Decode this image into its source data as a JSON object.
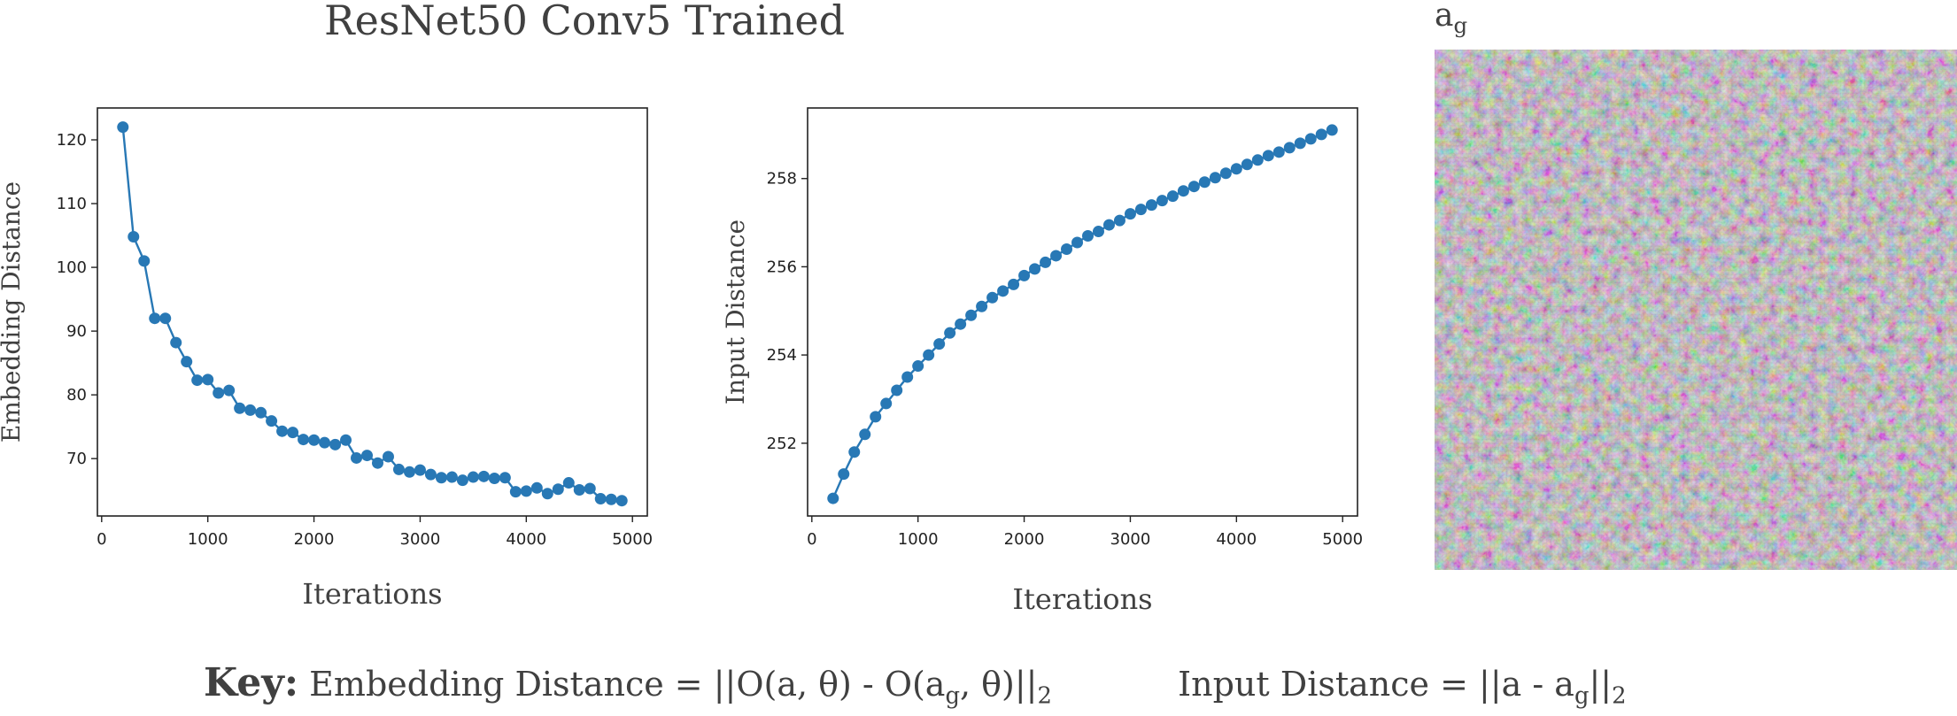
{
  "figure": {
    "title": "ResNet50 Conv5 Trained",
    "image_title": {
      "base": "a",
      "sub": "g"
    },
    "key": {
      "label": "Key:",
      "embedding_text": "Embedding Distance = ||O(a, θ) - O(a",
      "embedding_sub": "g",
      "embedding_tail": ", θ)||",
      "embedding_end_sub": "2",
      "input_text": "Input Distance = ||a - a",
      "input_sub": "g",
      "input_tail": "||",
      "input_end_sub": "2"
    },
    "colors": {
      "series": "#2878b5",
      "axis": "#222222",
      "text": "#404040"
    }
  },
  "chart_data": [
    {
      "type": "line",
      "xlabel": "Iterations",
      "ylabel": "Embedding Distance",
      "xlim": [
        -40,
        5140
      ],
      "ylim": [
        61,
        125
      ],
      "xticks": [
        0,
        1000,
        2000,
        3000,
        4000,
        5000
      ],
      "yticks": [
        70,
        80,
        90,
        100,
        110,
        120
      ],
      "grid": false,
      "series": [
        {
          "x": [
            200,
            300,
            400,
            500,
            600,
            700,
            800,
            900,
            1000,
            1100,
            1200,
            1300,
            1400,
            1500,
            1600,
            1700,
            1800,
            1900,
            2000,
            2100,
            2200,
            2300,
            2400,
            2500,
            2600,
            2700,
            2800,
            2900,
            3000,
            3100,
            3200,
            3300,
            3400,
            3500,
            3600,
            3700,
            3800,
            3900,
            4000,
            4100,
            4200,
            4300,
            4400,
            4500,
            4600,
            4700,
            4800,
            4900
          ],
          "y": [
            122,
            104.8,
            101,
            92,
            92,
            88.2,
            85.2,
            82.3,
            82.4,
            80.3,
            80.7,
            77.9,
            77.6,
            77.2,
            75.9,
            74.3,
            74.1,
            73,
            72.9,
            72.5,
            72.2,
            72.9,
            70.1,
            70.5,
            69.3,
            70.3,
            68.3,
            67.9,
            68.2,
            67.5,
            67,
            67.1,
            66.6,
            67.1,
            67.2,
            66.9,
            67,
            64.8,
            64.9,
            65.4,
            64.5,
            65.2,
            66.2,
            65.1,
            65.3,
            63.7,
            63.6,
            63.4
          ]
        }
      ]
    },
    {
      "type": "line",
      "xlabel": "Iterations",
      "ylabel": "Input Distance",
      "xlim": [
        -40,
        5140
      ],
      "ylim": [
        250.35,
        259.6
      ],
      "xticks": [
        0,
        1000,
        2000,
        3000,
        4000,
        5000
      ],
      "yticks": [
        252,
        254,
        256,
        258
      ],
      "grid": false,
      "series": [
        {
          "x": [
            200,
            300,
            400,
            500,
            600,
            700,
            800,
            900,
            1000,
            1100,
            1200,
            1300,
            1400,
            1500,
            1600,
            1700,
            1800,
            1900,
            2000,
            2100,
            2200,
            2300,
            2400,
            2500,
            2600,
            2700,
            2800,
            2900,
            3000,
            3100,
            3200,
            3300,
            3400,
            3500,
            3600,
            3700,
            3800,
            3900,
            4000,
            4100,
            4200,
            4300,
            4400,
            4500,
            4600,
            4700,
            4800,
            4900
          ],
          "y": [
            250.75,
            251.3,
            251.8,
            252.2,
            252.6,
            252.9,
            253.2,
            253.5,
            253.75,
            254,
            254.25,
            254.5,
            254.7,
            254.9,
            255.1,
            255.3,
            255.45,
            255.6,
            255.8,
            255.95,
            256.1,
            256.25,
            256.4,
            256.55,
            256.7,
            256.8,
            256.95,
            257.05,
            257.2,
            257.3,
            257.4,
            257.5,
            257.6,
            257.72,
            257.82,
            257.92,
            258.02,
            258.12,
            258.22,
            258.32,
            258.42,
            258.52,
            258.6,
            258.7,
            258.8,
            258.9,
            259,
            259.1
          ]
        }
      ]
    }
  ]
}
